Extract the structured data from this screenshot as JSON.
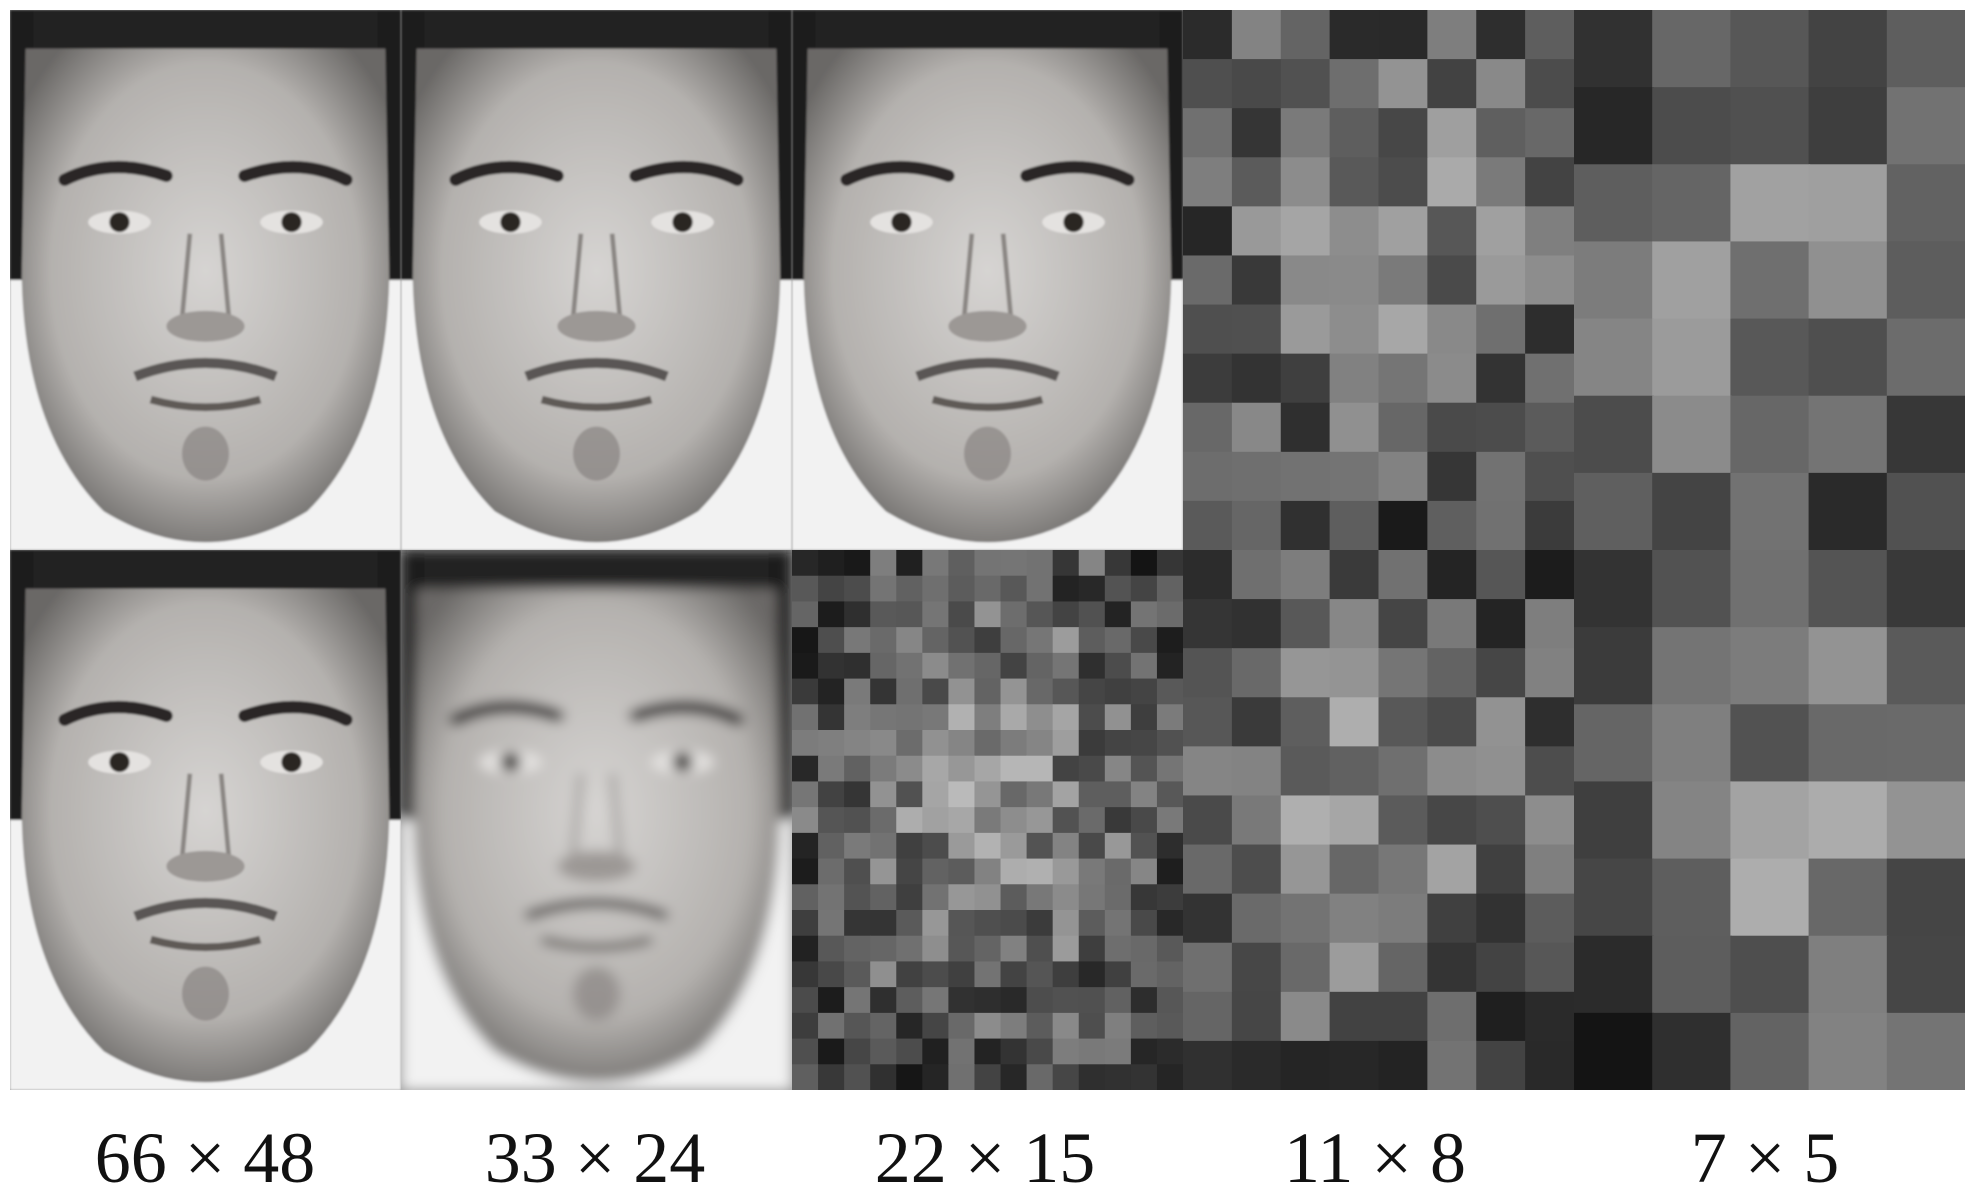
{
  "resolutions": [
    "66 × 48",
    "33 × 24",
    "22 × 15",
    "11 × 8",
    "7 × 5"
  ],
  "rows": [
    {
      "tiles": [
        {
          "resolution": "66 × 48",
          "kind": "face",
          "variant": "sharp"
        },
        {
          "resolution": "33 × 24",
          "kind": "face",
          "variant": "sharp"
        },
        {
          "resolution": "22 × 15",
          "kind": "face",
          "variant": "sharp"
        },
        {
          "resolution": "11 × 8",
          "kind": "pixel-grid"
        },
        {
          "resolution": "7 × 5",
          "kind": "pixel-grid"
        }
      ]
    },
    {
      "tiles": [
        {
          "resolution": "66 × 48",
          "kind": "face",
          "variant": "sharp"
        },
        {
          "resolution": "33 × 24",
          "kind": "face",
          "variant": "soft"
        },
        {
          "resolution": "22 × 15",
          "kind": "pixel-grid"
        },
        {
          "resolution": "11 × 8",
          "kind": "pixel-grid"
        },
        {
          "resolution": "7 × 5",
          "kind": "pixel-grid"
        }
      ]
    }
  ],
  "colors": {
    "background": "#ffffff",
    "text": "#111111"
  }
}
